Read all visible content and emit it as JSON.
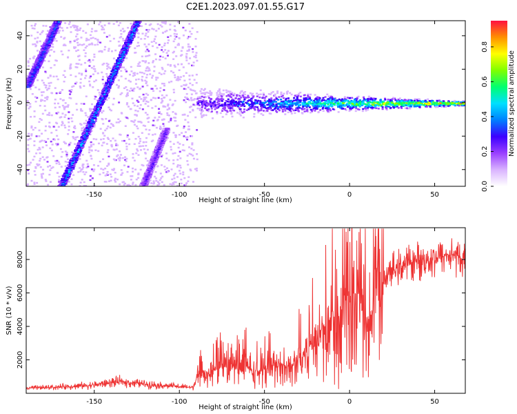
{
  "figure_title": "C2E1.2023.097.01.55.G17",
  "chart_data": [
    {
      "type": "heatmap",
      "xlabel": "Height of straight line (km)",
      "ylabel": "Frequency (Hz)",
      "xlim": [
        -190,
        68
      ],
      "ylim": [
        -50,
        49
      ],
      "x_ticks": [
        -150,
        -100,
        -50,
        0,
        50
      ],
      "y_ticks": [
        -40,
        -20,
        0,
        20,
        40
      ],
      "grid": false,
      "colorbar": {
        "label": "Normalized spectral amplitude",
        "range": [
          0,
          0.95
        ],
        "ticks": [
          0.0,
          0.2,
          0.4,
          0.6,
          0.8
        ],
        "colors": [
          "#ffffff",
          "#d9b3ff",
          "#9a40ff",
          "#3c00ff",
          "#0080ff",
          "#00e0ff",
          "#00ff70",
          "#80ff00",
          "#ffff00",
          "#ff9000",
          "#ff1040"
        ]
      },
      "features": {
        "noise_region_x": [
          -190,
          -90
        ],
        "stable_line_x": [
          -90,
          68
        ],
        "stable_line_frequency": 0,
        "sweep_lines": [
          {
            "x": [
              -170,
              -125
            ],
            "y": [
              -50,
              49
            ],
            "peak_amplitude": 0.45
          },
          {
            "x": [
              -190,
              -172
            ],
            "y": [
              10,
              49
            ],
            "peak_amplitude": 0.4
          },
          {
            "x": [
              -122,
              -108
            ],
            "y": [
              -50,
              -15
            ],
            "peak_amplitude": 0.3
          }
        ]
      }
    },
    {
      "type": "line",
      "xlabel": "Height of straight line (km)",
      "ylabel": "SNR (10 * v/v)",
      "xlim": [
        -190,
        68
      ],
      "ylim": [
        0,
        9900
      ],
      "x_ticks": [
        -150,
        -100,
        -50,
        0,
        50
      ],
      "y_ticks": [
        2000,
        4000,
        6000,
        8000
      ],
      "grid": false,
      "color": "#ee3333",
      "x": [
        -190,
        -170,
        -150,
        -135,
        -120,
        -100,
        -92,
        -90,
        -85,
        -80,
        -75,
        -70,
        -65,
        -60,
        -55,
        -50,
        -45,
        -40,
        -35,
        -30,
        -25,
        -20,
        -15,
        -10,
        -5,
        0,
        5,
        10,
        15,
        20,
        25,
        30,
        35,
        40,
        45,
        50,
        55,
        60,
        65,
        68
      ],
      "values": [
        300,
        380,
        500,
        700,
        550,
        400,
        350,
        900,
        1100,
        1300,
        1500,
        1700,
        1400,
        1600,
        1200,
        1500,
        1400,
        1700,
        1500,
        2000,
        2600,
        3300,
        4000,
        4600,
        4300,
        5400,
        6100,
        4100,
        6300,
        6900,
        7300,
        7600,
        7800,
        7900,
        8000,
        8100,
        8200,
        8300,
        8100,
        7800
      ]
    }
  ]
}
